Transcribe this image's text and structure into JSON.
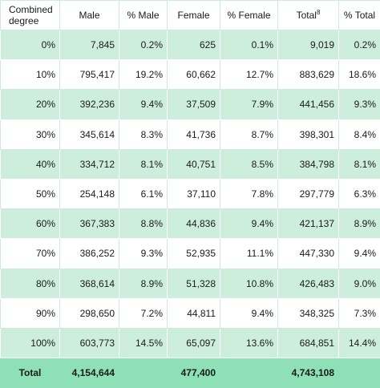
{
  "headers": {
    "degree": "Combined degree",
    "male": "Male",
    "pct_male": "% Male",
    "female": "Female",
    "pct_female": "% Female",
    "total": "Total",
    "total_note": "8",
    "pct_total": "% Total"
  },
  "rows": [
    {
      "degree": "0%",
      "male": "7,845",
      "pct_male": "0.2%",
      "female": "625",
      "pct_female": "0.1%",
      "total": "9,019",
      "pct_total": "0.2%"
    },
    {
      "degree": "10%",
      "male": "795,417",
      "pct_male": "19.2%",
      "female": "60,662",
      "pct_female": "12.7%",
      "total": "883,629",
      "pct_total": "18.6%"
    },
    {
      "degree": "20%",
      "male": "392,236",
      "pct_male": "9.4%",
      "female": "37,509",
      "pct_female": "7.9%",
      "total": "441,456",
      "pct_total": "9.3%"
    },
    {
      "degree": "30%",
      "male": "345,614",
      "pct_male": "8.3%",
      "female": "41,736",
      "pct_female": "8.7%",
      "total": "398,301",
      "pct_total": "8.4%"
    },
    {
      "degree": "40%",
      "male": "334,712",
      "pct_male": "8.1%",
      "female": "40,751",
      "pct_female": "8.5%",
      "total": "384,798",
      "pct_total": "8.1%"
    },
    {
      "degree": "50%",
      "male": "254,148",
      "pct_male": "6.1%",
      "female": "37,110",
      "pct_female": "7.8%",
      "total": "297,779",
      "pct_total": "6.3%"
    },
    {
      "degree": "60%",
      "male": "367,383",
      "pct_male": "8.8%",
      "female": "44,836",
      "pct_female": "9.4%",
      "total": "421,137",
      "pct_total": "8.9%"
    },
    {
      "degree": "70%",
      "male": "386,252",
      "pct_male": "9.3%",
      "female": "52,935",
      "pct_female": "11.1%",
      "total": "447,330",
      "pct_total": "9.4%"
    },
    {
      "degree": "80%",
      "male": "368,614",
      "pct_male": "8.9%",
      "female": "51,328",
      "pct_female": "10.8%",
      "total": "426,483",
      "pct_total": "9.0%"
    },
    {
      "degree": "90%",
      "male": "298,650",
      "pct_male": "7.2%",
      "female": "44,811",
      "pct_female": "9.4%",
      "total": "348,325",
      "pct_total": "7.3%"
    },
    {
      "degree": "100%",
      "male": "603,773",
      "pct_male": "14.5%",
      "female": "65,097",
      "pct_female": "13.6%",
      "total": "684,851",
      "pct_total": "14.4%"
    }
  ],
  "totals": {
    "label": "Total",
    "male": "4,154,644",
    "female": "477,400",
    "total": "4,743,108"
  },
  "colors": {
    "stripe": "#cdeedd",
    "total_row": "#8ee0b6",
    "border": "#cfe9dc"
  }
}
